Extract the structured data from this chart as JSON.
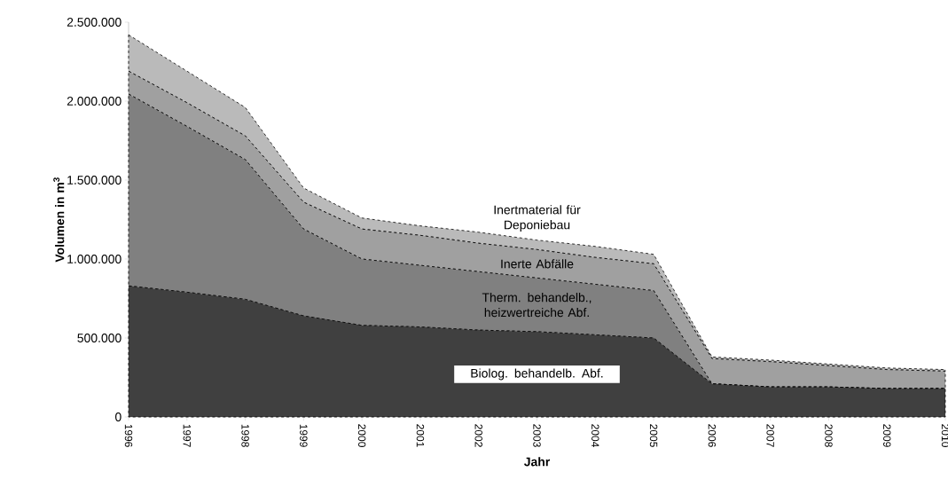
{
  "chart_data": {
    "type": "area",
    "stacked": true,
    "xlabel": "Jahr",
    "ylabel": "Volumen in m$^{3}$",
    "categories": [
      "1996",
      "1997",
      "1998",
      "1999",
      "2000",
      "2001",
      "2002",
      "2003",
      "2004",
      "2005",
      "2006",
      "2007",
      "2008",
      "2009",
      "2010"
    ],
    "series": [
      {
        "name": "Biolog. behandelb. Abf.",
        "color": "#404040",
        "values": [
          830000,
          790000,
          745000,
          640000,
          580000,
          570000,
          550000,
          540000,
          520000,
          500000,
          210000,
          190000,
          190000,
          180000,
          180000
        ]
      },
      {
        "name": "Therm. behandelb., heizwertreiche Abf.",
        "color": "#808080",
        "values": [
          1215000,
          1050000,
          885000,
          550000,
          420000,
          390000,
          370000,
          340000,
          320000,
          300000,
          0,
          0,
          0,
          0,
          0
        ]
      },
      {
        "name": "Inerte Abfälle",
        "color": "#a0a0a0",
        "values": [
          145000,
          150000,
          150000,
          170000,
          190000,
          190000,
          180000,
          180000,
          170000,
          170000,
          160000,
          160000,
          135000,
          120000,
          110000
        ]
      },
      {
        "name": "Inertmaterial für Deponiebau",
        "color": "#bababa",
        "values": [
          230000,
          200000,
          180000,
          90000,
          70000,
          60000,
          70000,
          60000,
          70000,
          60000,
          10000,
          10000,
          10000,
          10000,
          10000
        ]
      }
    ],
    "ylim": [
      0,
      2500000
    ],
    "yticks": [
      0,
      {
        "value": 500000,
        "label": "500.000"
      },
      {
        "value": 1000000,
        "label": "1.000.000"
      },
      {
        "value": 1500000,
        "label": "1.500.000"
      },
      {
        "value": 2000000,
        "label": "2.000.000"
      },
      {
        "value": 2500000,
        "label": "2.500.000"
      }
    ],
    "line_style": "dashed",
    "grid": false,
    "legend": false
  }
}
